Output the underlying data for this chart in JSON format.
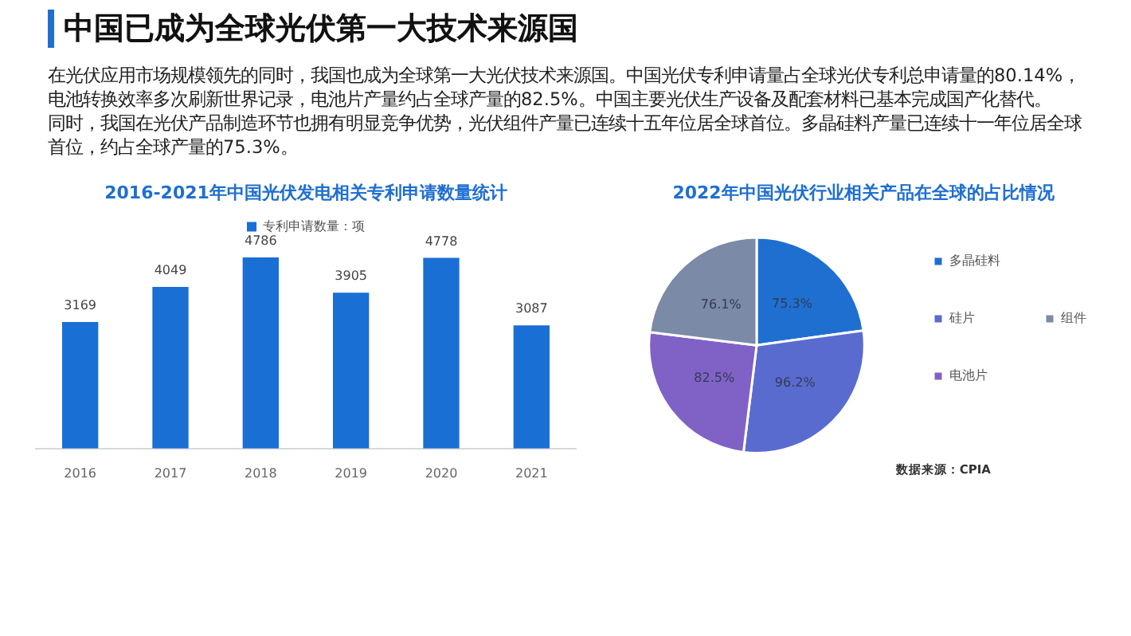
{
  "chart_data": [
    {
      "type": "other",
      "title": "中国已成为全球光伏第一大技术来源国",
      "annotations": [
        "在光伏应用市场规模领先的同时，我国也成为全球第一大光伏技术来源国。中国光伏专利申请量占全球光伏专利总申请量的80.14%，电池转换效率多次刷新世界记录，电池片产量约占全球产量的82.5%。中国主要光伏生产设备及配套材料已基本完成国产化替代。",
        "同时，我国在光伏产品制造环节也拥有明显竞争优势，光伏组件产量已连续十五年位居全球首位。多晶硅料产量已连续十一年位居全球首位，约占全球产量的75.3%。"
      ]
    },
    {
      "type": "bar",
      "title": "2016-2021年中国光伏发电相关专利申请数量统计",
      "categories": [
        "2016",
        "2017",
        "2018",
        "2019",
        "2020",
        "2021"
      ],
      "series": [
        {
          "name": "专利申请数量：项",
          "color": "#1a6fd4",
          "values": [
            3169,
            4049,
            4786,
            3905,
            4778,
            3087
          ]
        }
      ],
      "data_labels": true,
      "legend": "top",
      "grid": false,
      "tick_labels": "x"
    },
    {
      "type": "pie",
      "title": "2022年中国光伏行业相关产品在全球的占比情况",
      "categories": [
        "多晶硅料",
        "硅片",
        "电池片",
        "组件"
      ],
      "values": [
        75.3,
        96.2,
        82.5,
        76.1
      ],
      "colors": [
        "#1f6fd1",
        "#5a6bd0",
        "#8062c6",
        "#7b8aa6"
      ],
      "value_labels": [
        "75.3%",
        "96.2%",
        "82.5%",
        "76.1%"
      ],
      "legend": "right",
      "annotations": [
        "数据来源：CPIA"
      ]
    }
  ]
}
